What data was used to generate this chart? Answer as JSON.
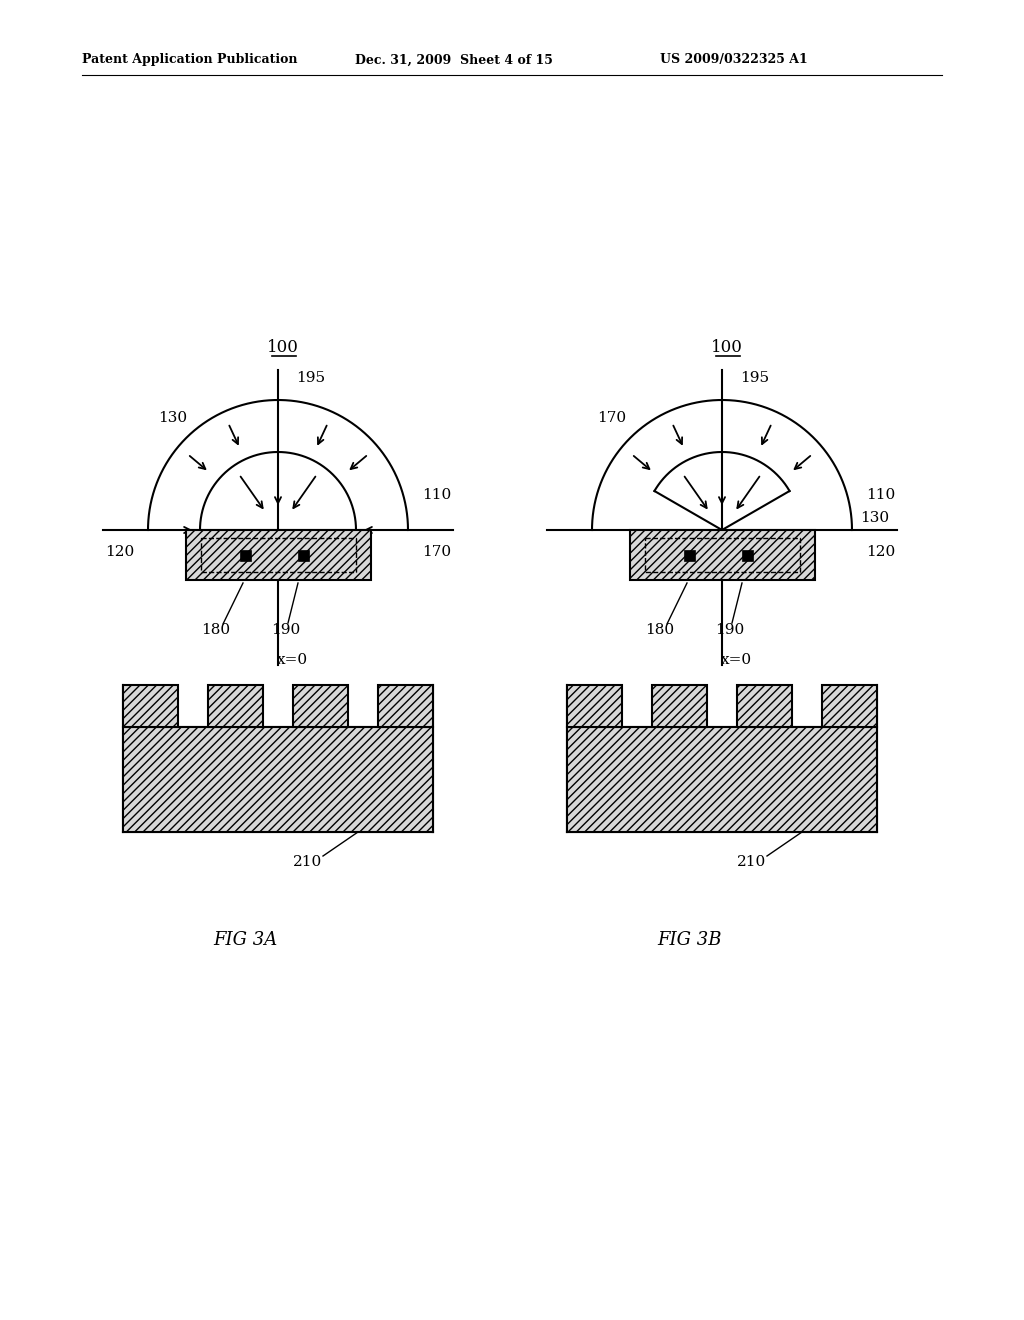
{
  "bg_color": "#ffffff",
  "header_left": "Patent Application Publication",
  "header_mid": "Dec. 31, 2009  Sheet 4 of 15",
  "header_right": "US 2009/0322325 A1",
  "fig3a_label": "FIG 3A",
  "fig3b_label": "FIG 3B",
  "label_100": "100",
  "label_195": "195",
  "label_110": "110",
  "label_130": "130",
  "label_120": "120",
  "label_170": "170",
  "label_180": "180",
  "label_190": "190",
  "label_x0": "x=0",
  "label_210": "210",
  "hatch_pattern": "////",
  "line_color": "#000000",
  "hatch_color": "#888888"
}
